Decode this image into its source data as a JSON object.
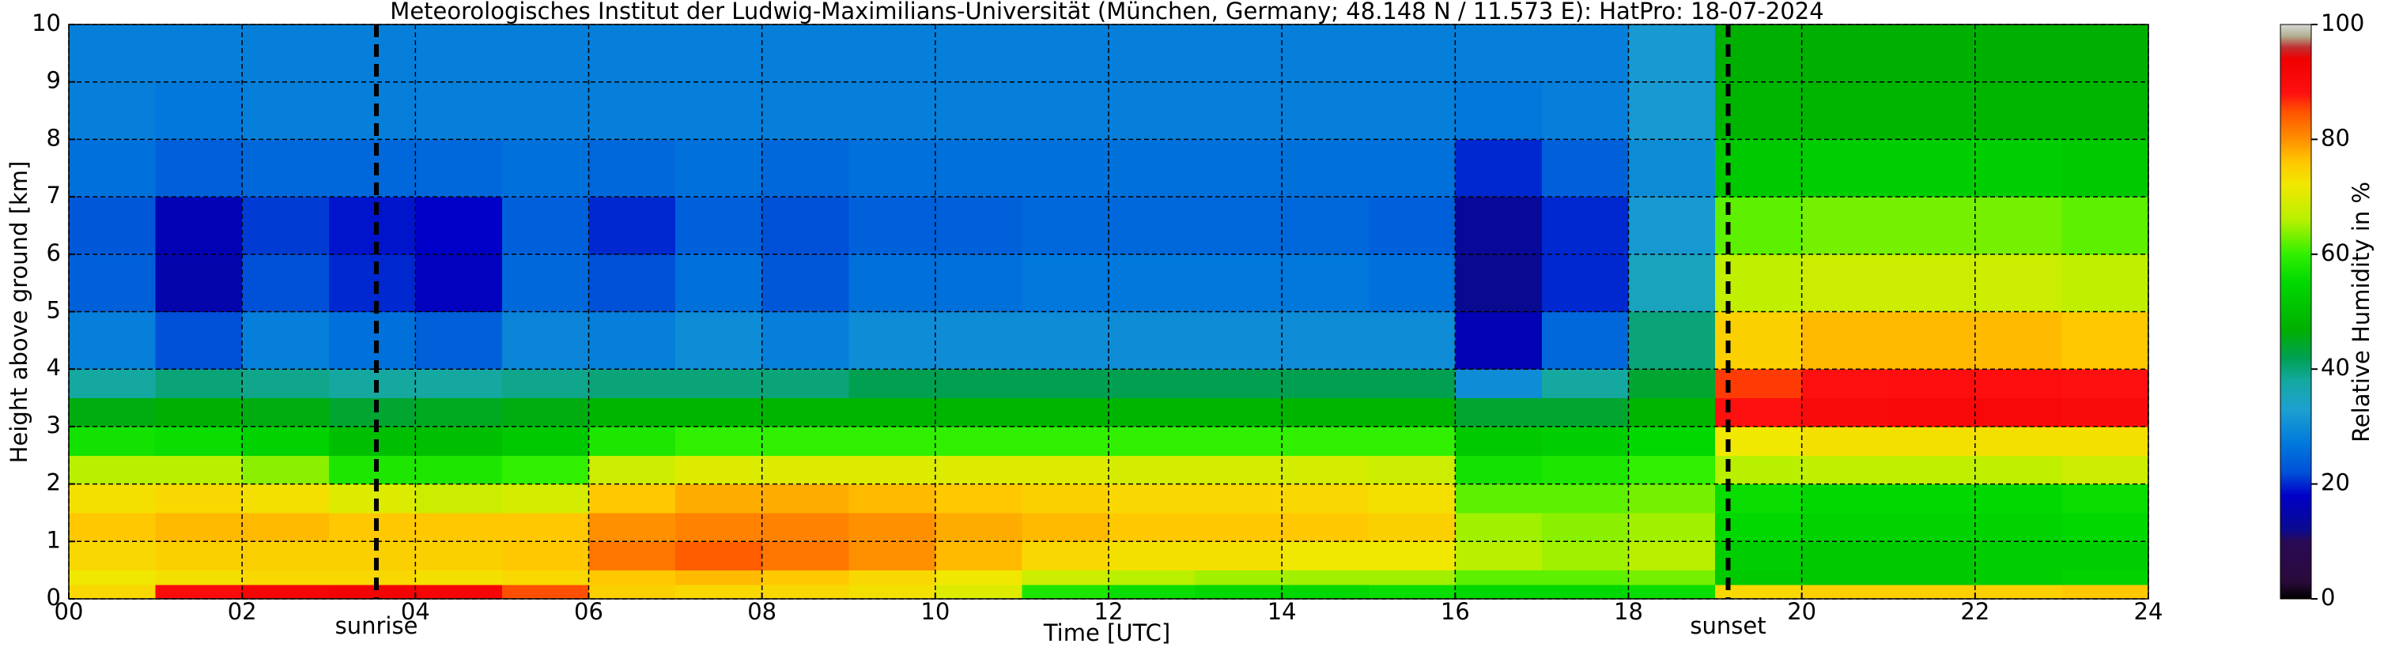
{
  "chart_data": {
    "type": "heatmap",
    "title": "Meteorologisches Institut der Ludwig-Maximilians-Universität (München, Germany; 48.148 N / 11.573 E):    HatPro: 18-07-2024",
    "x_label": "Time [UTC]",
    "y_label": "Height above ground [km]",
    "colorbar_label": "Relative Humidity in %",
    "x_edges": [
      0,
      1,
      2,
      3,
      4,
      5,
      6,
      7,
      8,
      9,
      10,
      11,
      12,
      13,
      14,
      15,
      16,
      17,
      18,
      19,
      20,
      21,
      22,
      23,
      24
    ],
    "y_edges": [
      0,
      0.25,
      0.5,
      1,
      1.5,
      2,
      2.5,
      3,
      3.5,
      4,
      5,
      6,
      7,
      8,
      9,
      10
    ],
    "z": [
      [
        74,
        90,
        92,
        93,
        92,
        85,
        75,
        74,
        74,
        73,
        70,
        58,
        56,
        55,
        55,
        56,
        55,
        55,
        56,
        74,
        75,
        75,
        75,
        76
      ],
      [
        72,
        73,
        74,
        74,
        73,
        74,
        76,
        77,
        76,
        74,
        72,
        68,
        66,
        65,
        65,
        65,
        62,
        62,
        63,
        52,
        52,
        52,
        53,
        54
      ],
      [
        74,
        75,
        75,
        75,
        75,
        76,
        82,
        84,
        82,
        80,
        77,
        74,
        73,
        73,
        72,
        72,
        66,
        65,
        66,
        53,
        52,
        52,
        53,
        53
      ],
      [
        76,
        77,
        77,
        76,
        76,
        76,
        80,
        81,
        81,
        80,
        78,
        77,
        76,
        76,
        76,
        75,
        65,
        64,
        65,
        55,
        54,
        54,
        54,
        55
      ],
      [
        73,
        74,
        73,
        70,
        68,
        69,
        76,
        78,
        78,
        77,
        76,
        75,
        74,
        74,
        74,
        73,
        62,
        62,
        63,
        56,
        55,
        55,
        55,
        56
      ],
      [
        66,
        66,
        64,
        58,
        58,
        60,
        68,
        70,
        70,
        70,
        70,
        70,
        69,
        69,
        69,
        68,
        57,
        58,
        60,
        66,
        67,
        67,
        67,
        68
      ],
      [
        57,
        56,
        54,
        50,
        50,
        52,
        58,
        60,
        60,
        60,
        60,
        60,
        60,
        60,
        60,
        60,
        52,
        53,
        55,
        72,
        73,
        73,
        73,
        73
      ],
      [
        46,
        47,
        46,
        44,
        45,
        46,
        48,
        48,
        48,
        48,
        48,
        48,
        48,
        48,
        48,
        48,
        44,
        44,
        48,
        88,
        90,
        91,
        91,
        90
      ],
      [
        38,
        40,
        39,
        38,
        38,
        39,
        40,
        40,
        40,
        42,
        42,
        42,
        42,
        42,
        42,
        42,
        30,
        38,
        44,
        86,
        88,
        89,
        89,
        88
      ],
      [
        28,
        22,
        28,
        26,
        24,
        29,
        28,
        30,
        28,
        30,
        30,
        30,
        30,
        30,
        30,
        30,
        16,
        25,
        40,
        75,
        77,
        77,
        77,
        76
      ],
      [
        24,
        15,
        22,
        20,
        17,
        25,
        22,
        26,
        23,
        26,
        26,
        27,
        27,
        27,
        27,
        26,
        12,
        20,
        35,
        67,
        68,
        68,
        68,
        67
      ],
      [
        23,
        16,
        21,
        19,
        18,
        24,
        20,
        24,
        22,
        24,
        24,
        25,
        25,
        25,
        25,
        24,
        13,
        20,
        32,
        62,
        63,
        63,
        63,
        62
      ],
      [
        26,
        24,
        25,
        25,
        25,
        26,
        25,
        26,
        25,
        26,
        26,
        26,
        26,
        26,
        26,
        26,
        20,
        24,
        30,
        52,
        53,
        53,
        53,
        52
      ],
      [
        28,
        27,
        28,
        28,
        28,
        28,
        28,
        28,
        28,
        28,
        28,
        28,
        28,
        28,
        28,
        28,
        27,
        28,
        32,
        48,
        48,
        48,
        48,
        48
      ],
      [
        28,
        28,
        28,
        28,
        28,
        28,
        28,
        28,
        28,
        28,
        28,
        28,
        28,
        28,
        28,
        28,
        28,
        28,
        32,
        47,
        47,
        47,
        47,
        47
      ]
    ],
    "xlim": [
      0,
      24
    ],
    "ylim": [
      0,
      10
    ],
    "xticks": [
      {
        "value": 0,
        "label": "00"
      },
      {
        "value": 2,
        "label": "02"
      },
      {
        "value": 4,
        "label": "04"
      },
      {
        "value": 6,
        "label": "06"
      },
      {
        "value": 8,
        "label": "08"
      },
      10,
      12,
      14,
      16,
      18,
      20,
      22,
      24
    ],
    "yticks": [
      0,
      1,
      2,
      3,
      4,
      5,
      6,
      7,
      8,
      9,
      10
    ],
    "grid": true,
    "clim": [
      0,
      100
    ],
    "cticks": [
      0,
      20,
      40,
      60,
      80,
      100
    ],
    "colorscale": [
      [
        0,
        "#000000"
      ],
      [
        3,
        "#2a0a3a"
      ],
      [
        10,
        "#2a0a55"
      ],
      [
        12,
        "#0a0a90"
      ],
      [
        18,
        "#0000c8"
      ],
      [
        22,
        "#0050d8"
      ],
      [
        27,
        "#0078dc"
      ],
      [
        33,
        "#1ea0d0"
      ],
      [
        38,
        "#14a8a0"
      ],
      [
        42,
        "#00a050"
      ],
      [
        47,
        "#00b000"
      ],
      [
        55,
        "#00d800"
      ],
      [
        60,
        "#30f000"
      ],
      [
        66,
        "#b8f000"
      ],
      [
        72,
        "#f0e800"
      ],
      [
        76,
        "#ffc800"
      ],
      [
        80,
        "#ff9000"
      ],
      [
        85,
        "#ff5000"
      ],
      [
        88,
        "#ff1010"
      ],
      [
        94,
        "#f00000"
      ],
      [
        96,
        "#c03030"
      ],
      [
        98,
        "#b0b090"
      ],
      [
        100,
        "#d8d8d8"
      ]
    ],
    "annotations": [
      {
        "x": 3.55,
        "text": "sunrise"
      },
      {
        "x": 19.15,
        "text": "sunset"
      }
    ]
  }
}
